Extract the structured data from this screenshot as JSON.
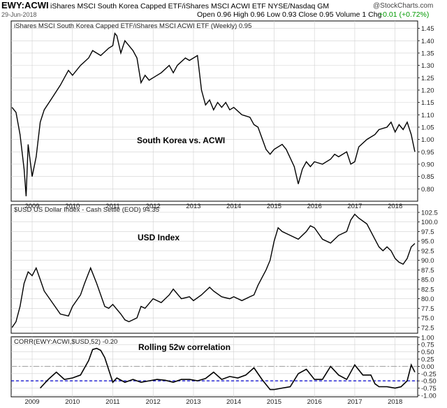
{
  "header": {
    "symbol": "EWY:ACWI",
    "description": "iShares MSCI South Korea Capped ETF/iShares MSCI ACWI ETF  NYSE/Nasdaq GM",
    "date": "29-Jun-2018",
    "stats": "Open 0.96  High 0.96  Low 0.93  Close 0.95  Volume 1  Chg",
    "change": "+0.01 (+0.72%)",
    "change_color": "#009900",
    "logo": "@StockCharts.com"
  },
  "chart_data": [
    {
      "type": "line",
      "title": "iShares MSCI South Korea Capped ETF/iShares MSCI ACWI ETF (Weekly) 0.95",
      "annotation": "South Korea vs. ACWI",
      "ylim": [
        0.75,
        1.48
      ],
      "yticks": [
        "1.45",
        "1.40",
        "1.35",
        "1.30",
        "1.25",
        "1.20",
        "1.15",
        "1.10",
        "1.05",
        "1.00",
        "0.95",
        "0.90",
        "0.85",
        "0.80"
      ],
      "ytick_values": [
        1.45,
        1.4,
        1.35,
        1.3,
        1.25,
        1.2,
        1.15,
        1.1,
        1.05,
        1.0,
        0.95,
        0.9,
        0.85,
        0.8
      ],
      "x": [
        2008.5,
        2008.6,
        2008.7,
        2008.8,
        2008.85,
        2008.9,
        2009.0,
        2009.1,
        2009.2,
        2009.3,
        2009.5,
        2009.7,
        2009.9,
        2010.0,
        2010.2,
        2010.4,
        2010.5,
        2010.7,
        2010.9,
        2011.0,
        2011.05,
        2011.1,
        2011.2,
        2011.3,
        2011.4,
        2011.5,
        2011.6,
        2011.7,
        2011.8,
        2011.9,
        2012.0,
        2012.2,
        2012.4,
        2012.5,
        2012.6,
        2012.8,
        2012.9,
        2013.0,
        2013.1,
        2013.2,
        2013.3,
        2013.4,
        2013.5,
        2013.6,
        2013.7,
        2013.8,
        2013.9,
        2014.0,
        2014.2,
        2014.4,
        2014.5,
        2014.6,
        2014.8,
        2014.9,
        2015.0,
        2015.2,
        2015.3,
        2015.5,
        2015.6,
        2015.7,
        2015.8,
        2015.9,
        2016.0,
        2016.2,
        2016.4,
        2016.5,
        2016.6,
        2016.8,
        2016.9,
        2017.0,
        2017.1,
        2017.3,
        2017.5,
        2017.6,
        2017.8,
        2017.9,
        2018.0,
        2018.1,
        2018.2,
        2018.3,
        2018.4,
        2018.49
      ],
      "values": [
        1.13,
        1.11,
        1.02,
        0.88,
        0.77,
        0.98,
        0.85,
        0.93,
        1.07,
        1.12,
        1.17,
        1.22,
        1.28,
        1.26,
        1.3,
        1.33,
        1.36,
        1.34,
        1.37,
        1.38,
        1.43,
        1.42,
        1.35,
        1.4,
        1.38,
        1.36,
        1.33,
        1.23,
        1.26,
        1.24,
        1.25,
        1.27,
        1.3,
        1.27,
        1.3,
        1.33,
        1.32,
        1.33,
        1.34,
        1.2,
        1.14,
        1.16,
        1.12,
        1.15,
        1.13,
        1.15,
        1.12,
        1.13,
        1.1,
        1.09,
        1.06,
        1.05,
        0.96,
        0.94,
        0.96,
        0.98,
        0.96,
        0.89,
        0.82,
        0.88,
        0.91,
        0.89,
        0.91,
        0.9,
        0.92,
        0.94,
        0.93,
        0.95,
        0.9,
        0.91,
        0.97,
        1.0,
        1.02,
        1.04,
        1.05,
        1.07,
        1.03,
        1.06,
        1.04,
        1.07,
        1.02,
        0.95
      ]
    },
    {
      "type": "line",
      "title": "$USD US Dollar Index - Cash Settle (EOD) 94.35",
      "annotation": "USD Index",
      "ylim": [
        71.0,
        104.5
      ],
      "yticks": [
        "102.5",
        "100.0",
        "97.5",
        "95.0",
        "92.5",
        "90.0",
        "87.5",
        "85.0",
        "82.5",
        "80.0",
        "77.5",
        "75.0",
        "72.5"
      ],
      "ytick_values": [
        102.5,
        100.0,
        97.5,
        95.0,
        92.5,
        90.0,
        87.5,
        85.0,
        82.5,
        80.0,
        77.5,
        75.0,
        72.5
      ],
      "x": [
        2008.5,
        2008.6,
        2008.7,
        2008.8,
        2008.9,
        2009.0,
        2009.1,
        2009.2,
        2009.3,
        2009.5,
        2009.7,
        2009.9,
        2010.0,
        2010.2,
        2010.3,
        2010.45,
        2010.6,
        2010.8,
        2010.9,
        2011.0,
        2011.2,
        2011.3,
        2011.4,
        2011.6,
        2011.7,
        2011.8,
        2012.0,
        2012.2,
        2012.4,
        2012.5,
        2012.7,
        2012.9,
        2013.0,
        2013.2,
        2013.4,
        2013.5,
        2013.7,
        2013.9,
        2014.0,
        2014.2,
        2014.4,
        2014.5,
        2014.6,
        2014.7,
        2014.8,
        2014.9,
        2015.0,
        2015.1,
        2015.2,
        2015.4,
        2015.6,
        2015.8,
        2015.9,
        2016.0,
        2016.2,
        2016.4,
        2016.5,
        2016.6,
        2016.8,
        2016.9,
        2017.0,
        2017.1,
        2017.3,
        2017.5,
        2017.6,
        2017.7,
        2017.8,
        2017.9,
        2018.0,
        2018.1,
        2018.2,
        2018.3,
        2018.4,
        2018.49
      ],
      "values": [
        72.5,
        74.0,
        78.0,
        84.0,
        87.0,
        86.0,
        88.0,
        85.0,
        82.0,
        79.0,
        76.0,
        75.5,
        78.0,
        81.0,
        84.0,
        88.0,
        84.0,
        78.0,
        77.5,
        78.5,
        76.0,
        74.5,
        74.0,
        75.0,
        78.0,
        77.5,
        80.0,
        79.0,
        81.0,
        82.5,
        80.0,
        80.5,
        79.5,
        81.0,
        83.0,
        82.0,
        80.5,
        80.0,
        80.5,
        79.5,
        80.5,
        81.0,
        83.5,
        85.5,
        87.5,
        90.0,
        95.0,
        98.5,
        97.5,
        96.5,
        95.5,
        97.5,
        99.0,
        98.5,
        95.5,
        94.5,
        95.5,
        96.5,
        97.5,
        100.5,
        102.0,
        101.0,
        99.5,
        95.5,
        93.5,
        92.5,
        93.5,
        92.5,
        90.5,
        89.5,
        89.0,
        90.5,
        93.5,
        94.4
      ]
    },
    {
      "type": "line",
      "title": "CORR(EWY:ACWI,$USD,52) -0.20",
      "annotation": "Rolling 52w correlation",
      "ylim": [
        -1.05,
        1.02
      ],
      "yticks": [
        "1.00",
        "0.75",
        "0.50",
        "0.25",
        "0.00",
        "-0.25",
        "-0.50",
        "-0.75",
        "-1.00"
      ],
      "ytick_values": [
        1.0,
        0.75,
        0.5,
        0.25,
        0.0,
        -0.25,
        -0.5,
        -0.75,
        -1.0
      ],
      "reference_lines": [
        0.0,
        -0.5
      ],
      "x": [
        2009.2,
        2009.4,
        2009.6,
        2009.8,
        2010.0,
        2010.2,
        2010.4,
        2010.5,
        2010.6,
        2010.7,
        2010.8,
        2011.0,
        2011.1,
        2011.3,
        2011.5,
        2011.7,
        2011.9,
        2012.1,
        2012.3,
        2012.5,
        2012.7,
        2012.9,
        2013.1,
        2013.3,
        2013.5,
        2013.7,
        2013.9,
        2014.1,
        2014.3,
        2014.5,
        2014.7,
        2014.9,
        2015.0,
        2015.2,
        2015.4,
        2015.6,
        2015.8,
        2016.0,
        2016.2,
        2016.4,
        2016.6,
        2016.8,
        2017.0,
        2017.2,
        2017.4,
        2017.5,
        2017.6,
        2017.8,
        2018.0,
        2018.15,
        2018.3,
        2018.4,
        2018.49
      ],
      "values": [
        -0.75,
        -0.45,
        -0.2,
        -0.45,
        -0.4,
        -0.3,
        0.2,
        0.58,
        0.62,
        0.55,
        0.3,
        -0.55,
        -0.4,
        -0.55,
        -0.45,
        -0.55,
        -0.5,
        -0.45,
        -0.48,
        -0.55,
        -0.45,
        -0.45,
        -0.5,
        -0.42,
        -0.2,
        -0.45,
        -0.35,
        -0.4,
        -0.3,
        -0.05,
        -0.45,
        -0.8,
        -0.8,
        -0.75,
        -0.7,
        -0.25,
        -0.1,
        -0.45,
        -0.45,
        0.0,
        -0.3,
        -0.45,
        0.05,
        -0.3,
        -0.3,
        -0.6,
        -0.7,
        -0.7,
        -0.75,
        -0.7,
        -0.5,
        0.05,
        -0.2
      ]
    }
  ],
  "xaxis": {
    "labels": [
      "2009",
      "2010",
      "2011",
      "2012",
      "2013",
      "2014",
      "2015",
      "2016",
      "2017",
      "2018"
    ],
    "years": [
      2009,
      2010,
      2011,
      2012,
      2013,
      2014,
      2015,
      2016,
      2017,
      2018
    ],
    "xlim": [
      2008.48,
      2018.56
    ]
  },
  "colors": {
    "line": "#000000",
    "grid": "#d0d0d0",
    "zero_line": "#9e9e9e",
    "ref_line": "#0000cc"
  }
}
